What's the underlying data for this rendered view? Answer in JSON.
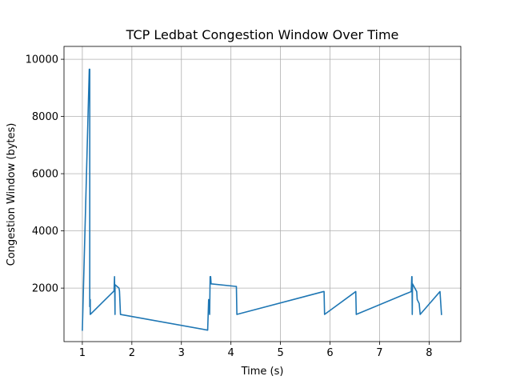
{
  "chart_data": {
    "type": "line",
    "title": "TCP Ledbat Congestion Window Over Time",
    "xlabel": "Time (s)",
    "ylabel": "Congestion Window (bytes)",
    "xlim": [
      0.63,
      8.64
    ],
    "ylim": [
      130,
      10450
    ],
    "xticks": [
      1,
      2,
      3,
      4,
      5,
      6,
      7,
      8
    ],
    "xtick_labels": [
      "1",
      "2",
      "3",
      "4",
      "5",
      "6",
      "7",
      "8"
    ],
    "yticks": [
      2000,
      4000,
      6000,
      8000,
      10000
    ],
    "ytick_labels": [
      "2000",
      "4000",
      "6000",
      "8000",
      "10000"
    ],
    "grid": true,
    "legend": "none",
    "series": [
      {
        "color": "#1f77b4",
        "x": [
          1.0,
          1.14,
          1.15,
          1.15,
          1.16,
          1.16,
          1.64,
          1.65,
          1.65,
          1.66,
          1.66,
          1.74,
          1.75,
          1.77,
          3.53,
          3.55,
          3.57,
          3.58,
          3.59,
          3.6,
          4.1,
          4.11,
          4.12,
          5.87,
          5.88,
          5.89,
          6.52,
          6.53,
          7.64,
          7.65,
          7.655,
          7.66,
          7.665,
          7.75,
          7.76,
          7.8,
          7.82,
          8.22,
          8.25
        ],
        "y": [
          530,
          9650,
          9650,
          1350,
          1600,
          1080,
          1900,
          2400,
          2400,
          1080,
          2120,
          2000,
          1900,
          1080,
          530,
          1600,
          1080,
          2400,
          2400,
          2150,
          2060,
          2060,
          1080,
          1880,
          1880,
          1080,
          1880,
          1080,
          1880,
          2400,
          2400,
          1080,
          2150,
          1880,
          1600,
          1460,
          1080,
          1880,
          1080
        ]
      }
    ]
  }
}
